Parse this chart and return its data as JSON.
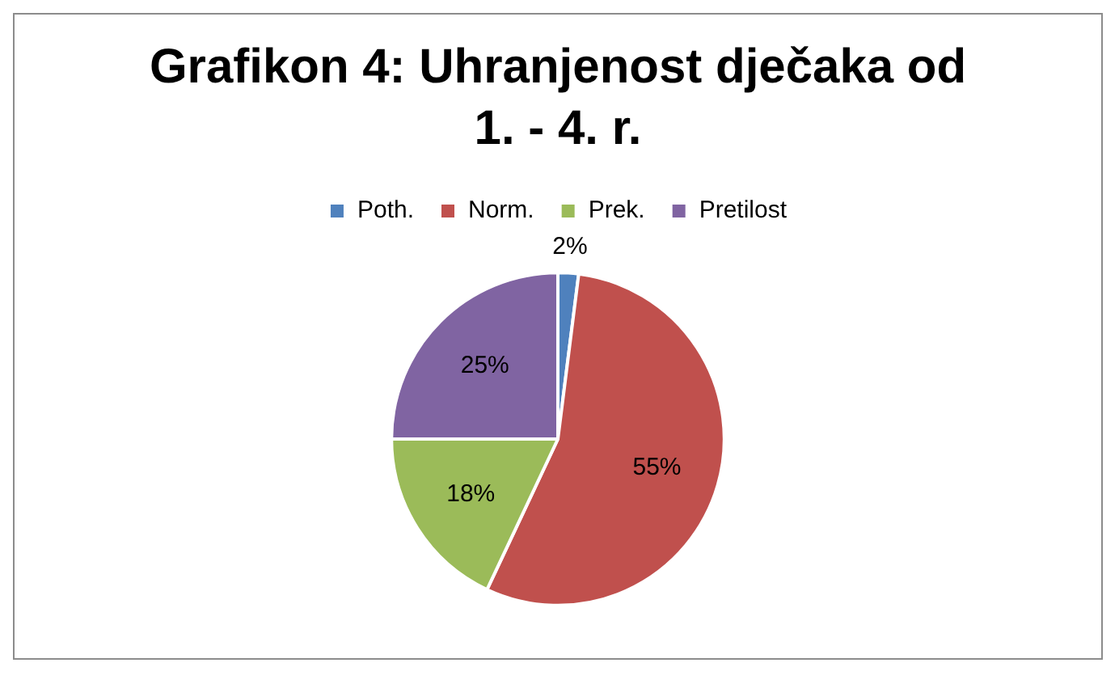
{
  "chart_data": {
    "type": "pie",
    "title": "Grafikon 4: Uhranjenost dječaka od 1. - 4. r.",
    "categories": [
      "Poth.",
      "Norm.",
      "Prek.",
      "Pretilost"
    ],
    "values": [
      2,
      55,
      18,
      25
    ],
    "colors": [
      "#4f81bd",
      "#c0504d",
      "#9bbb59",
      "#8064a2"
    ],
    "value_labels": [
      "2%",
      "55%",
      "18%",
      "25%"
    ],
    "legend": "top"
  }
}
